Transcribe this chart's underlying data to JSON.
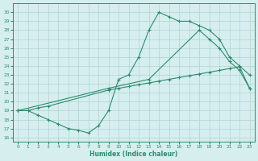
{
  "line1_x": [
    0,
    1,
    2,
    3,
    4,
    5,
    6,
    7,
    8,
    9,
    10,
    11,
    12,
    13,
    14,
    15,
    16,
    17,
    18,
    19,
    20,
    21,
    22,
    23
  ],
  "line1_y": [
    19.0,
    19.0,
    18.5,
    18.0,
    17.5,
    17.0,
    16.8,
    16.5,
    17.3,
    19.0,
    22.5,
    23.0,
    25.0,
    28.0,
    30.0,
    29.5,
    29.0,
    29.0,
    28.5,
    28.0,
    27.0,
    25.0,
    24.0,
    23.0
  ],
  "line2_x": [
    0,
    9,
    13,
    18,
    19,
    20,
    21,
    22,
    23
  ],
  "line2_y": [
    19.0,
    21.5,
    22.5,
    28.0,
    27.0,
    26.0,
    24.5,
    23.5,
    21.5
  ],
  "line3_x": [
    0,
    1,
    2,
    3,
    9,
    10,
    11,
    12,
    13,
    14,
    15,
    16,
    17,
    18,
    19,
    20,
    21,
    22,
    23
  ],
  "line3_y": [
    19.0,
    19.0,
    19.3,
    19.5,
    21.3,
    21.5,
    21.7,
    21.9,
    22.1,
    22.3,
    22.5,
    22.7,
    22.9,
    23.1,
    23.3,
    23.5,
    23.7,
    23.9,
    21.5
  ],
  "line_color": "#2e8b6e",
  "bg_color": "#d6eeee",
  "grid_color": "#b0d4d4",
  "xlabel": "Humidex (Indice chaleur)",
  "ylim": [
    15.5,
    31
  ],
  "xlim": [
    -0.5,
    23.5
  ],
  "yticks": [
    16,
    17,
    18,
    19,
    20,
    21,
    22,
    23,
    24,
    25,
    26,
    27,
    28,
    29,
    30
  ],
  "xticks": [
    0,
    1,
    2,
    3,
    4,
    5,
    6,
    7,
    8,
    9,
    10,
    11,
    12,
    13,
    14,
    15,
    16,
    17,
    18,
    19,
    20,
    21,
    22,
    23
  ],
  "marker": "+",
  "marker_size": 3,
  "linewidth": 0.8
}
